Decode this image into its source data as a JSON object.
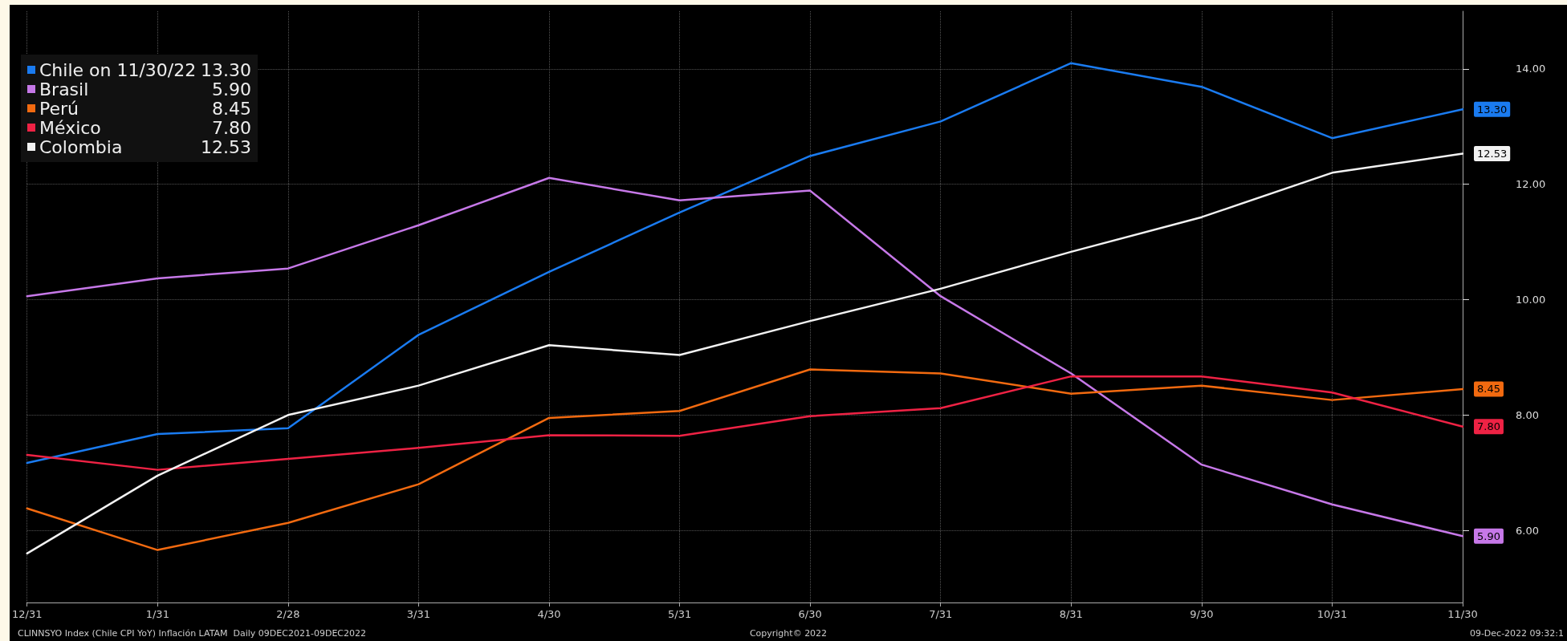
{
  "chart_data": {
    "type": "line",
    "categories": [
      "12/31",
      "1/31",
      "2/28",
      "3/31",
      "4/30",
      "5/31",
      "6/30",
      "7/31",
      "8/31",
      "9/30",
      "10/31",
      "11/30"
    ],
    "series": [
      {
        "name": "Chile on 11/30/22",
        "color": "#1a7bf0",
        "values": [
          7.17,
          7.67,
          7.77,
          9.39,
          10.48,
          11.51,
          12.49,
          13.09,
          14.1,
          13.69,
          12.8,
          13.3
        ],
        "value_labels": [
          null,
          null,
          null,
          null,
          null,
          null,
          null,
          null,
          null,
          null,
          null,
          "13.30"
        ]
      },
      {
        "name": "Brasil",
        "color": "#c678e8",
        "values": [
          10.06,
          10.37,
          10.54,
          11.29,
          12.11,
          11.72,
          11.89,
          10.06,
          8.72,
          7.14,
          6.45,
          5.9
        ],
        "value_labels": [
          null,
          null,
          null,
          null,
          null,
          null,
          null,
          null,
          null,
          null,
          null,
          "5.90"
        ]
      },
      {
        "name": "Perú",
        "color": "#f26a10",
        "values": [
          6.38,
          5.66,
          6.13,
          6.8,
          7.95,
          8.07,
          8.79,
          8.72,
          8.37,
          8.51,
          8.26,
          8.45
        ],
        "value_labels": [
          null,
          null,
          null,
          null,
          null,
          null,
          null,
          null,
          null,
          null,
          null,
          "8.45"
        ]
      },
      {
        "name": "México",
        "color": "#ee2244",
        "values": [
          7.31,
          7.05,
          7.24,
          7.43,
          7.65,
          7.64,
          7.98,
          8.12,
          8.67,
          8.67,
          8.39,
          7.8
        ],
        "value_labels": [
          null,
          null,
          null,
          null,
          null,
          null,
          null,
          null,
          null,
          null,
          null,
          "7.80"
        ]
      },
      {
        "name": "Colombia",
        "color": "#f2f2f2",
        "values": [
          5.6,
          6.95,
          8.0,
          8.51,
          9.21,
          9.04,
          9.63,
          10.19,
          10.83,
          11.43,
          12.2,
          12.53
        ],
        "value_labels": [
          null,
          null,
          null,
          null,
          null,
          null,
          null,
          null,
          null,
          null,
          null,
          "12.53"
        ]
      }
    ],
    "ylim": [
      4.75,
      15
    ],
    "yticks": [
      {
        "value": 6,
        "label": "6.00"
      },
      {
        "value": 8,
        "label": "8.00"
      },
      {
        "value": 10,
        "label": "10.00"
      },
      {
        "value": 12,
        "label": "12.00"
      },
      {
        "value": 14,
        "label": "14.00"
      }
    ],
    "grid": true,
    "legend": "top left",
    "marker": "none",
    "line_style": "solid",
    "annotations": [
      "CLINNSYO Index (Chile CPI YoY) Inflación LATAM  Daily 09DEC2021-09DEC2022",
      "Copyright© 2022",
      "09-Dec-2022 09:32:1"
    ]
  }
}
